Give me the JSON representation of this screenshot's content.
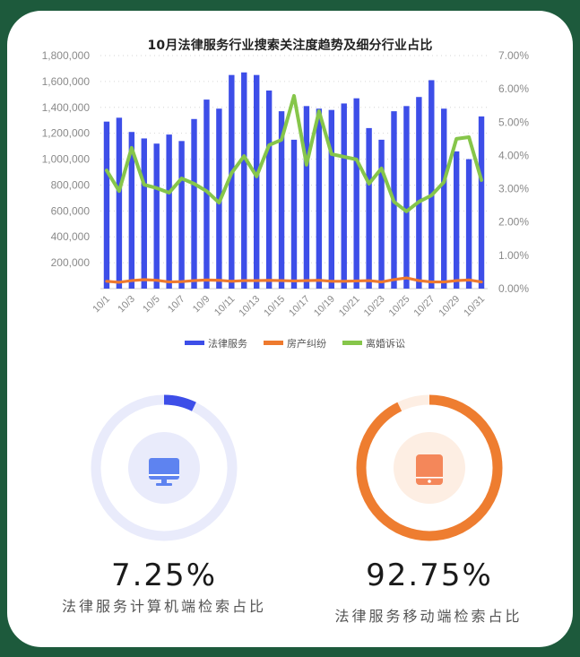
{
  "chart_data": {
    "type": "bar+line",
    "title": "10月法律服务行业搜索关注度趋势及细分行业占比",
    "categories": [
      "10/1",
      "10/2",
      "10/3",
      "10/4",
      "10/5",
      "10/6",
      "10/7",
      "10/8",
      "10/9",
      "10/10",
      "10/11",
      "10/12",
      "10/13",
      "10/14",
      "10/15",
      "10/16",
      "10/17",
      "10/18",
      "10/19",
      "10/20",
      "10/21",
      "10/22",
      "10/23",
      "10/24",
      "10/25",
      "10/26",
      "10/27",
      "10/28",
      "10/29",
      "10/30",
      "10/31"
    ],
    "x_tick_labels": [
      "10/1",
      "10/3",
      "10/5",
      "10/7",
      "10/9",
      "10/11",
      "10/13",
      "10/15",
      "10/17",
      "10/19",
      "10/21",
      "10/23",
      "10/25",
      "10/27",
      "10/29",
      "10/31"
    ],
    "series": [
      {
        "name": "法律服务",
        "type": "bar",
        "axis": "left",
        "color": "#3d4ee8",
        "values": [
          1290000,
          1320000,
          1210000,
          1160000,
          1120000,
          1190000,
          1140000,
          1310000,
          1460000,
          1390000,
          1650000,
          1670000,
          1650000,
          1530000,
          1370000,
          1150000,
          1410000,
          1390000,
          1380000,
          1430000,
          1470000,
          1240000,
          1150000,
          1370000,
          1410000,
          1480000,
          1610000,
          1390000,
          1060000,
          1000000,
          1330000
        ]
      },
      {
        "name": "房产纠纷",
        "type": "line",
        "axis": "right",
        "color": "#ee7a2e",
        "values": [
          0.22,
          0.19,
          0.24,
          0.27,
          0.25,
          0.2,
          0.21,
          0.24,
          0.26,
          0.25,
          0.22,
          0.24,
          0.24,
          0.25,
          0.24,
          0.23,
          0.24,
          0.25,
          0.22,
          0.22,
          0.23,
          0.24,
          0.2,
          0.27,
          0.32,
          0.24,
          0.2,
          0.2,
          0.24,
          0.26,
          0.2
        ]
      },
      {
        "name": "离婚诉讼",
        "type": "line",
        "axis": "right",
        "color": "#86c64a",
        "values": [
          3.55,
          2.93,
          4.23,
          3.12,
          3.02,
          2.88,
          3.31,
          3.15,
          2.93,
          2.58,
          3.47,
          3.98,
          3.37,
          4.31,
          4.47,
          5.79,
          3.72,
          5.33,
          4.04,
          3.96,
          3.88,
          3.15,
          3.61,
          2.61,
          2.32,
          2.61,
          2.8,
          3.2,
          4.5,
          4.55,
          3.26
        ]
      }
    ],
    "left_axis": {
      "ticks": [
        "200,000",
        "400,000",
        "600,000",
        "800,000",
        "1,000,000",
        "1,200,000",
        "1,400,000",
        "1,600,000",
        "1,800,000"
      ],
      "ylim": [
        0,
        1800000
      ]
    },
    "right_axis": {
      "ticks": [
        "0.00%",
        "1.00%",
        "2.00%",
        "3.00%",
        "4.00%",
        "5.00%",
        "6.00%",
        "7.00%"
      ],
      "ylim": [
        0,
        7
      ]
    },
    "grid": "dotted horizontal",
    "legend_position": "bottom"
  },
  "legend": [
    {
      "label": "法律服务",
      "color": "#3d4ee8"
    },
    {
      "label": "房产纠纷",
      "color": "#ee7a2e"
    },
    {
      "label": "离婚诉讼",
      "color": "#86c64a"
    }
  ],
  "stats": [
    {
      "percent": "7.25%",
      "value": 7.25,
      "caption": "法律服务计算机端检索占比",
      "icon": "desktop-monitor-icon",
      "color": "#3d4ee8",
      "track": "#e9ebfb",
      "inner": "#e9ebfb",
      "icon_color": "#5e83f0"
    },
    {
      "percent": "92.75%",
      "value": 92.75,
      "caption": "法律服务移动端检索占比",
      "icon": "tablet-icon",
      "color": "#ee7d30",
      "track": "#fdeee3",
      "inner": "#fdeee3",
      "icon_color": "#f4875a"
    }
  ]
}
